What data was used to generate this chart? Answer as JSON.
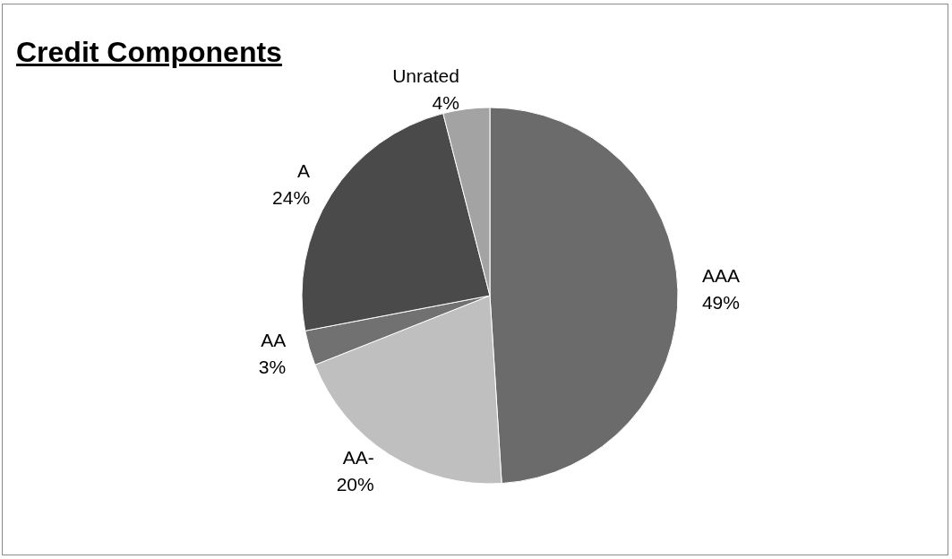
{
  "chart_data": {
    "type": "pie",
    "title": "Credit Components",
    "categories": [
      "AAA",
      "AA-",
      "AA",
      "A",
      "Unrated"
    ],
    "values": [
      49,
      20,
      3,
      24,
      4
    ],
    "colors": [
      "#6b6b6b",
      "#bfbfbf",
      "#717171",
      "#4a4a4a",
      "#a3a3a3"
    ],
    "value_labels": [
      "49%",
      "20%",
      "3%",
      "24%",
      "4%"
    ],
    "legend": false
  }
}
